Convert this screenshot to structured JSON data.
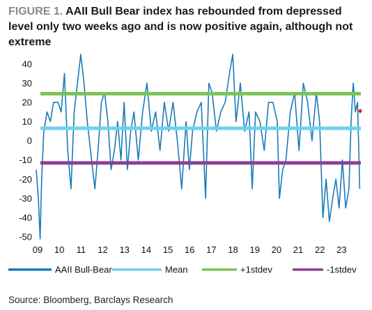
{
  "figure": {
    "label": "FIGURE 1.",
    "title": "AAII Bull Bear index has rebounded from depressed level only two weeks ago and is now positive again, although not extreme",
    "source": "Source: Bloomberg, Barclays Research"
  },
  "chart_data": {
    "type": "line",
    "ylim": [
      -50,
      45
    ],
    "yticks": [
      40,
      30,
      20,
      10,
      0,
      -10,
      -20,
      -30,
      -40,
      -50
    ],
    "xticks": [
      "09",
      "10",
      "11",
      "12",
      "13",
      "14",
      "15",
      "16",
      "17",
      "18",
      "19",
      "20",
      "21",
      "22",
      "23"
    ],
    "xlim": [
      2009.0,
      2023.95
    ],
    "grid": false,
    "legend_position": "bottom",
    "series": [
      {
        "name": "AAII Bull-Bear",
        "color": "#1a7ab8",
        "x": [
          2009.0,
          2009.1,
          2009.18,
          2009.25,
          2009.35,
          2009.5,
          2009.65,
          2009.8,
          2010.0,
          2010.15,
          2010.3,
          2010.45,
          2010.6,
          2010.75,
          2010.9,
          2011.05,
          2011.2,
          2011.35,
          2011.5,
          2011.6,
          2011.7,
          2011.85,
          2012.0,
          2012.15,
          2012.3,
          2012.45,
          2012.6,
          2012.75,
          2012.9,
          2013.05,
          2013.2,
          2013.35,
          2013.5,
          2013.7,
          2013.9,
          2014.1,
          2014.3,
          2014.5,
          2014.7,
          2014.9,
          2015.1,
          2015.3,
          2015.5,
          2015.7,
          2015.9,
          2016.05,
          2016.2,
          2016.4,
          2016.6,
          2016.8,
          2016.95,
          2017.1,
          2017.3,
          2017.5,
          2017.7,
          2017.9,
          2018.05,
          2018.2,
          2018.4,
          2018.6,
          2018.8,
          2018.95,
          2019.1,
          2019.3,
          2019.5,
          2019.7,
          2019.9,
          2020.1,
          2020.2,
          2020.35,
          2020.5,
          2020.7,
          2020.9,
          2021.1,
          2021.3,
          2021.5,
          2021.7,
          2021.9,
          2022.05,
          2022.2,
          2022.35,
          2022.5,
          2022.65,
          2022.8,
          2022.95,
          2023.1,
          2023.25,
          2023.4,
          2023.5,
          2023.6,
          2023.7,
          2023.8,
          2023.9
        ],
        "y": [
          -15,
          -30,
          -51,
          -20,
          5,
          15,
          10,
          20,
          20,
          15,
          35,
          -5,
          -25,
          15,
          30,
          45,
          30,
          10,
          -5,
          -15,
          -25,
          -5,
          20,
          25,
          10,
          -15,
          -5,
          10,
          -10,
          20,
          -15,
          5,
          15,
          -10,
          15,
          30,
          5,
          15,
          -5,
          20,
          5,
          20,
          0,
          -25,
          10,
          -15,
          5,
          15,
          20,
          -30,
          30,
          25,
          5,
          15,
          20,
          35,
          45,
          10,
          30,
          5,
          15,
          -25,
          15,
          10,
          -5,
          20,
          20,
          10,
          -30,
          -15,
          -10,
          15,
          25,
          -5,
          30,
          20,
          0,
          25,
          10,
          -40,
          -20,
          -42,
          -30,
          -20,
          -35,
          -10,
          -35,
          -25,
          10,
          30,
          15,
          20,
          -25
        ]
      },
      {
        "name": "Mean",
        "color": "#6ed1ee",
        "value": 6.5
      },
      {
        "name": "+1stdev",
        "color": "#7dc356",
        "value": 24.5
      },
      {
        "name": "-1stdev",
        "color": "#8d3f95",
        "value": -11.5
      }
    ],
    "annotations": [
      {
        "type": "point",
        "x": 2023.92,
        "y": 15.5,
        "color": "#e0191e"
      }
    ]
  }
}
